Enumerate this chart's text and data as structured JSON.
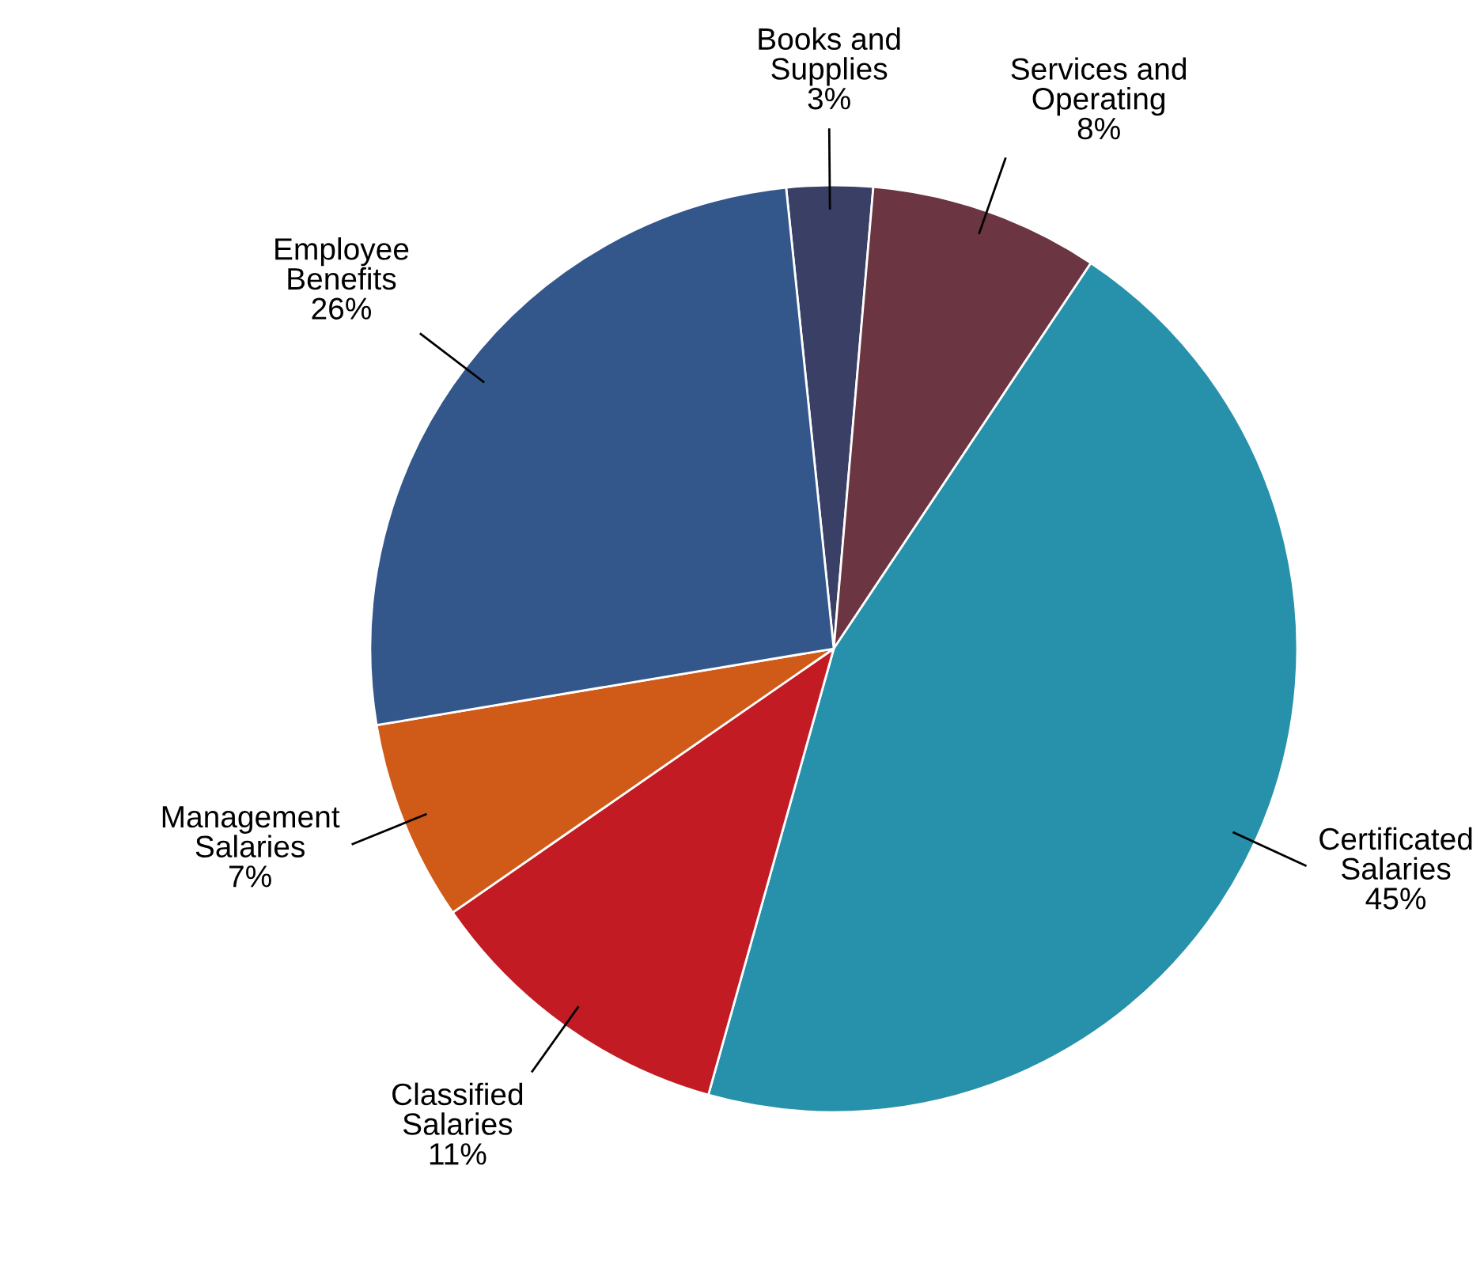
{
  "chart_data": {
    "type": "pie",
    "categories": [
      "Books and\nSupplies",
      "Services and\nOperating",
      "Certificated\nSalaries",
      "Classified\nSalaries",
      "Management\nSalaries",
      "Employee\nBenefits"
    ],
    "values": [
      3,
      8,
      45,
      11,
      7,
      26
    ],
    "value_labels": [
      "3%",
      "8%",
      "45%",
      "11%",
      "7%",
      "26%"
    ],
    "colors": [
      "#3a3f66",
      "#6b3541",
      "#2790aa",
      "#c21b24",
      "#d05a17",
      "#33578a"
    ],
    "legend": false
  }
}
